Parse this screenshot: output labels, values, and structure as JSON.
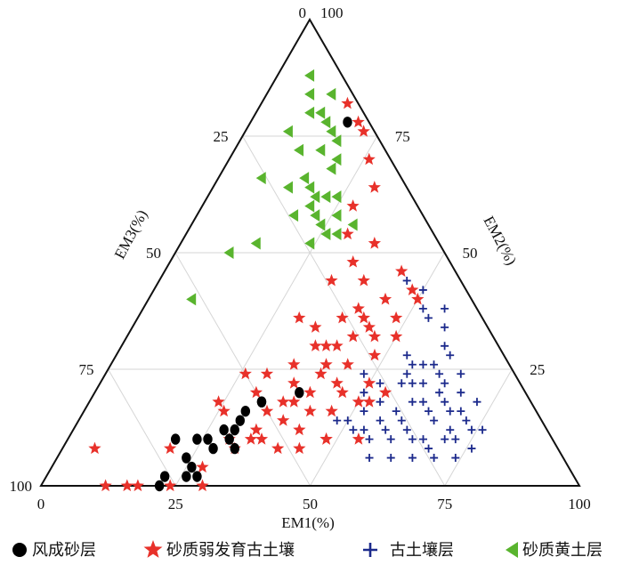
{
  "chart_data": {
    "type": "scatter",
    "plot_kind": "ternary",
    "axes": {
      "em1": {
        "label": "EM1(%)",
        "ticks": [
          "0",
          "25",
          "50",
          "75",
          "100"
        ]
      },
      "em2": {
        "label": "EM2(%)",
        "ticks": [
          "25",
          "50",
          "75",
          "100"
        ]
      },
      "em3": {
        "label": "EM3(%)",
        "ticks": [
          "0",
          "25",
          "50",
          "75",
          "100"
        ]
      }
    },
    "grid": true,
    "legend_position": "bottom",
    "series": [
      {
        "name": "风成砂层",
        "marker": "circle",
        "color": "#000000",
        "points": [
          [
            22,
            0,
            78
          ],
          [
            24,
            6,
            70
          ],
          [
            26,
            4,
            70
          ],
          [
            20,
            10,
            70
          ],
          [
            28,
            12,
            60
          ],
          [
            30,
            14,
            56
          ],
          [
            32,
            18,
            50
          ],
          [
            38,
            20,
            42
          ],
          [
            22,
            2,
            76
          ],
          [
            28,
            2,
            70
          ],
          [
            24,
            10,
            66
          ],
          [
            26,
            2,
            72
          ],
          [
            26,
            10,
            64
          ],
          [
            30,
            16,
            54
          ],
          [
            30,
            12,
            58
          ],
          [
            32,
            18,
            50
          ],
          [
            28,
            8,
            64
          ],
          [
            30,
            10,
            60
          ],
          [
            32,
            8,
            60
          ],
          [
            18,
            78,
            4
          ]
        ]
      },
      {
        "name": "砂质弱发育古土壤",
        "marker": "star",
        "color": "#e8312a",
        "points": [
          [
            16,
            0,
            84
          ],
          [
            12,
            0,
            88
          ],
          [
            18,
            0,
            82
          ],
          [
            24,
            0,
            76
          ],
          [
            30,
            0,
            70
          ],
          [
            6,
            8,
            86
          ],
          [
            20,
            8,
            72
          ],
          [
            28,
            4,
            68
          ],
          [
            32,
            8,
            60
          ],
          [
            30,
            10,
            60
          ],
          [
            34,
            10,
            56
          ],
          [
            36,
            10,
            54
          ],
          [
            40,
            8,
            52
          ],
          [
            44,
            8,
            48
          ],
          [
            48,
            10,
            42
          ],
          [
            54,
            10,
            36
          ],
          [
            34,
            12,
            54
          ],
          [
            38,
            14,
            48
          ],
          [
            42,
            16,
            42
          ],
          [
            46,
            16,
            38
          ],
          [
            50,
            18,
            32
          ],
          [
            54,
            20,
            26
          ],
          [
            30,
            20,
            50
          ],
          [
            36,
            22,
            42
          ],
          [
            40,
            24,
            36
          ],
          [
            44,
            26,
            30
          ],
          [
            48,
            28,
            24
          ],
          [
            38,
            30,
            32
          ],
          [
            42,
            32,
            26
          ],
          [
            46,
            32,
            22
          ],
          [
            50,
            32,
            18
          ],
          [
            44,
            34,
            22
          ],
          [
            48,
            36,
            16
          ],
          [
            40,
            38,
            22
          ],
          [
            44,
            40,
            16
          ],
          [
            48,
            42,
            10
          ],
          [
            44,
            46,
            10
          ],
          [
            50,
            40,
            10
          ],
          [
            38,
            44,
            18
          ],
          [
            34,
            48,
            18
          ],
          [
            36,
            52,
            12
          ],
          [
            30,
            36,
            34
          ],
          [
            34,
            26,
            40
          ],
          [
            36,
            30,
            34
          ],
          [
            40,
            30,
            30
          ],
          [
            40,
            26,
            34
          ],
          [
            44,
            22,
            34
          ],
          [
            46,
            20,
            34
          ],
          [
            52,
            18,
            30
          ],
          [
            50,
            22,
            28
          ],
          [
            32,
            44,
            24
          ],
          [
            30,
            54,
            16
          ],
          [
            28,
            60,
            12
          ],
          [
            30,
            64,
            6
          ],
          [
            26,
            70,
            4
          ],
          [
            20,
            78,
            2
          ],
          [
            16,
            82,
            2
          ],
          [
            22,
            76,
            2
          ],
          [
            48,
            10,
            42
          ],
          [
            36,
            18,
            46
          ],
          [
            34,
            16,
            50
          ],
          [
            38,
            18,
            44
          ],
          [
            40,
            20,
            40
          ],
          [
            42,
            12,
            46
          ],
          [
            26,
            16,
            58
          ],
          [
            24,
            18,
            58
          ],
          [
            26,
            24,
            50
          ],
          [
            30,
            24,
            46
          ],
          [
            34,
            34,
            32
          ],
          [
            38,
            36,
            26
          ],
          [
            42,
            36,
            22
          ]
        ]
      },
      {
        "name": "古土壤层",
        "marker": "plus",
        "color": "#1c2a8c",
        "points": [
          [
            50,
            20,
            30
          ],
          [
            52,
            22,
            26
          ],
          [
            56,
            22,
            22
          ],
          [
            58,
            22,
            20
          ],
          [
            60,
            22,
            18
          ],
          [
            64,
            22,
            14
          ],
          [
            66,
            24,
            10
          ],
          [
            60,
            26,
            14
          ],
          [
            62,
            28,
            10
          ],
          [
            56,
            24,
            20
          ],
          [
            58,
            26,
            16
          ],
          [
            62,
            24,
            14
          ],
          [
            54,
            28,
            18
          ],
          [
            60,
            30,
            10
          ],
          [
            58,
            34,
            8
          ],
          [
            54,
            36,
            10
          ],
          [
            56,
            38,
            6
          ],
          [
            50,
            42,
            8
          ],
          [
            46,
            44,
            10
          ],
          [
            52,
            38,
            10
          ],
          [
            64,
            16,
            20
          ],
          [
            66,
            18,
            16
          ],
          [
            68,
            20,
            12
          ],
          [
            70,
            16,
            14
          ],
          [
            72,
            14,
            14
          ],
          [
            70,
            10,
            20
          ],
          [
            68,
            8,
            24
          ],
          [
            72,
            10,
            18
          ],
          [
            74,
            12,
            14
          ],
          [
            76,
            12,
            12
          ],
          [
            66,
            10,
            24
          ],
          [
            62,
            12,
            26
          ],
          [
            60,
            14,
            26
          ],
          [
            58,
            16,
            26
          ],
          [
            56,
            14,
            30
          ],
          [
            54,
            12,
            34
          ],
          [
            52,
            12,
            36
          ],
          [
            50,
            14,
            36
          ],
          [
            48,
            14,
            38
          ],
          [
            54,
            18,
            28
          ],
          [
            62,
            18,
            20
          ],
          [
            64,
            20,
            16
          ],
          [
            60,
            18,
            22
          ],
          [
            68,
            16,
            16
          ],
          [
            72,
            18,
            10
          ],
          [
            56,
            10,
            34
          ],
          [
            58,
            6,
            36
          ],
          [
            62,
            6,
            32
          ],
          [
            66,
            6,
            28
          ],
          [
            70,
            6,
            24
          ],
          [
            74,
            6,
            20
          ],
          [
            64,
            10,
            26
          ],
          [
            60,
            10,
            30
          ],
          [
            52,
            16,
            32
          ],
          [
            58,
            12,
            30
          ],
          [
            66,
            14,
            20
          ],
          [
            70,
            12,
            18
          ],
          [
            76,
            8,
            16
          ],
          [
            48,
            24,
            28
          ],
          [
            56,
            26,
            18
          ]
        ]
      },
      {
        "name": "砂质黄土层",
        "marker": "triangle-left",
        "color": "#59b42e",
        "points": [
          [
            8,
            66,
            26
          ],
          [
            12,
            72,
            16
          ],
          [
            12,
            80,
            8
          ],
          [
            10,
            80,
            10
          ],
          [
            8,
            84,
            8
          ],
          [
            6,
            88,
            6
          ],
          [
            20,
            60,
            20
          ],
          [
            18,
            64,
            18
          ],
          [
            16,
            66,
            18
          ],
          [
            20,
            62,
            18
          ],
          [
            22,
            62,
            16
          ],
          [
            22,
            58,
            20
          ],
          [
            24,
            56,
            20
          ],
          [
            26,
            54,
            20
          ],
          [
            24,
            52,
            24
          ],
          [
            20,
            70,
            10
          ],
          [
            18,
            74,
            8
          ],
          [
            16,
            76,
            8
          ],
          [
            14,
            78,
            8
          ],
          [
            20,
            68,
            12
          ],
          [
            24,
            62,
            14
          ],
          [
            14,
            64,
            22
          ],
          [
            18,
            58,
            24
          ],
          [
            16,
            72,
            12
          ],
          [
            12,
            84,
            4
          ],
          [
            28,
            54,
            18
          ],
          [
            30,
            56,
            14
          ],
          [
            26,
            58,
            16
          ],
          [
            8,
            40,
            52
          ],
          [
            10,
            50,
            40
          ],
          [
            14,
            52,
            34
          ],
          [
            8,
            76,
            16
          ]
        ]
      }
    ]
  }
}
